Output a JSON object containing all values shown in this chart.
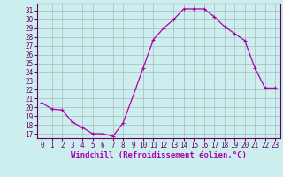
{
  "x": [
    0,
    1,
    2,
    3,
    4,
    5,
    6,
    7,
    8,
    9,
    10,
    11,
    12,
    13,
    14,
    15,
    16,
    17,
    18,
    19,
    20,
    21,
    22,
    23
  ],
  "y": [
    20.5,
    19.8,
    19.7,
    18.3,
    17.7,
    17.0,
    17.0,
    16.7,
    18.2,
    21.3,
    24.5,
    27.7,
    29.0,
    30.0,
    31.2,
    31.2,
    31.2,
    30.3,
    29.2,
    28.4,
    27.6,
    24.5,
    22.2,
    22.2
  ],
  "line_color": "#aa00aa",
  "marker": "+",
  "marker_size": 3,
  "marker_linewidth": 0.8,
  "bg_color": "#cceeee",
  "grid_color": "#aabbbb",
  "xlabel": "Windchill (Refroidissement éolien,°C)",
  "xlabel_color": "#aa00aa",
  "xlabel_fontsize": 6.5,
  "ylabel_ticks": [
    17,
    18,
    19,
    20,
    21,
    22,
    23,
    24,
    25,
    26,
    27,
    28,
    29,
    30,
    31
  ],
  "ylim": [
    16.5,
    31.8
  ],
  "xlim": [
    -0.5,
    23.5
  ],
  "tick_fontsize": 5.5,
  "axis_color": "#660066",
  "spine_color": "#660066",
  "line_width": 0.9
}
